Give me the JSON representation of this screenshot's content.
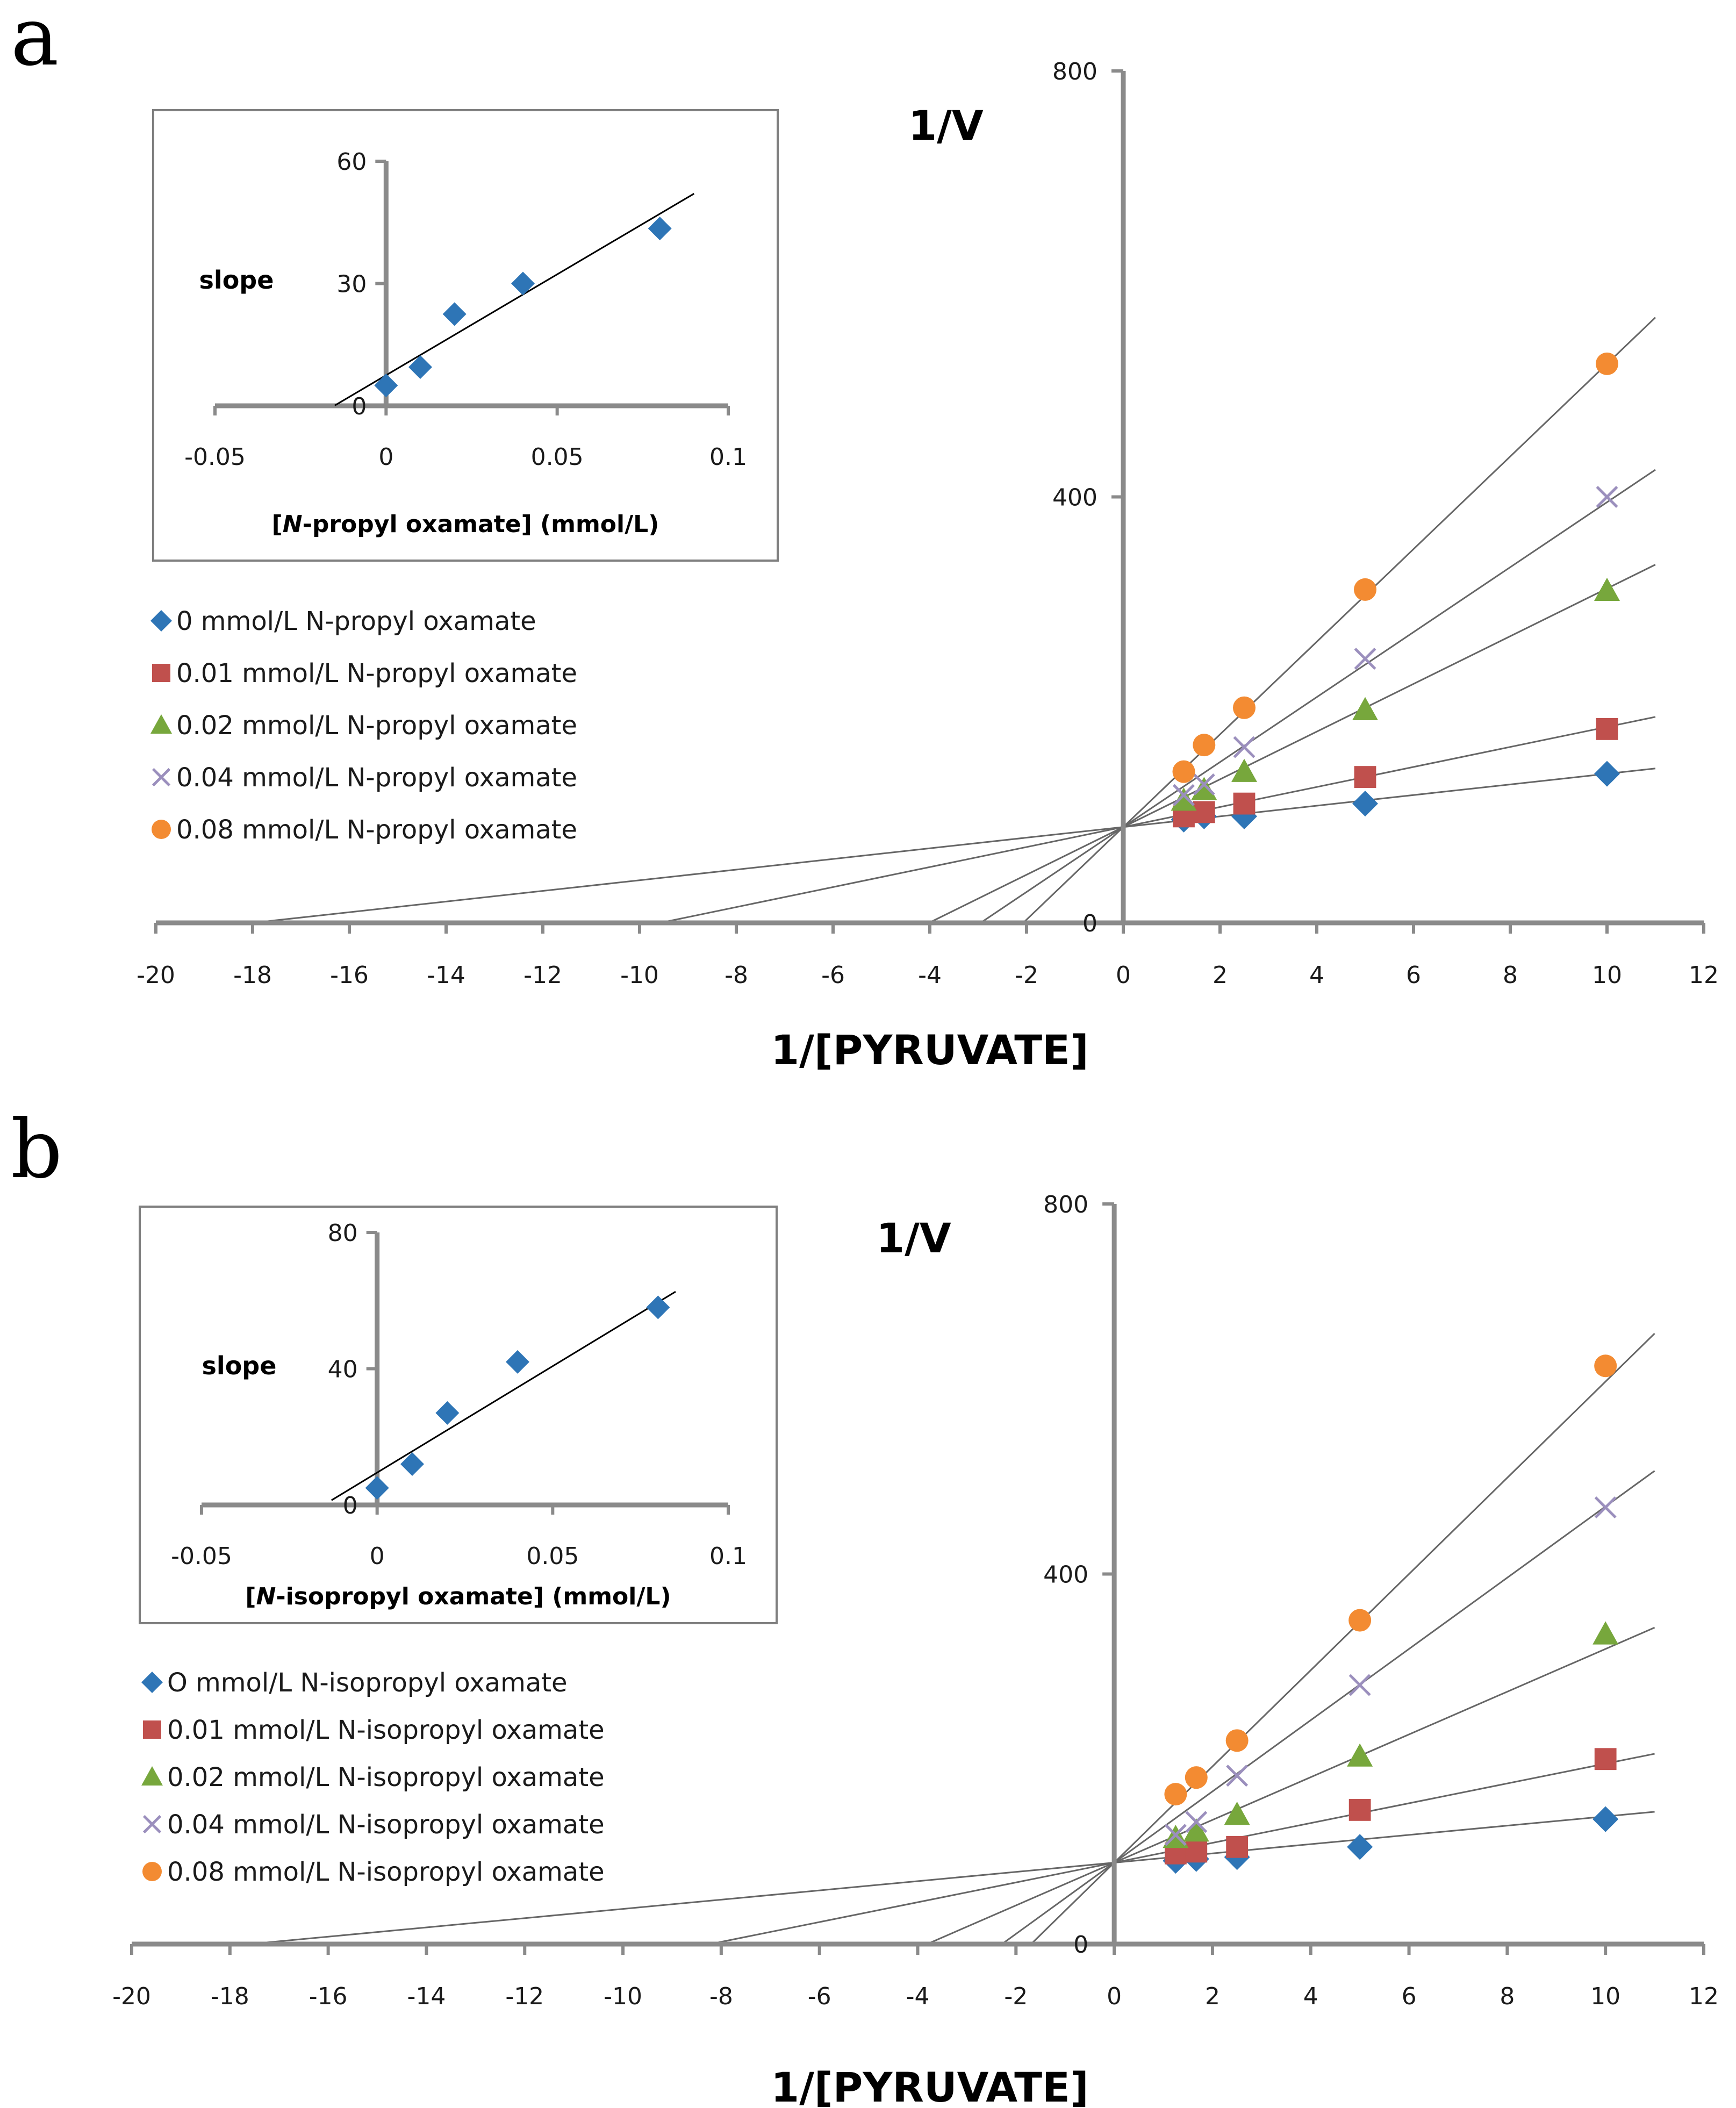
{
  "chart_data": [
    {
      "type": "scatter",
      "panel_label": "a",
      "title": "",
      "xlabel": "1/[PYRUVATE]",
      "ylabel": "1/V",
      "xlim": [
        -20,
        12
      ],
      "ylim": [
        0,
        800
      ],
      "x_ticks": [
        "-20",
        "-18",
        "-16",
        "-14",
        "-12",
        "-10",
        "-8",
        "-6",
        "-4",
        "-2",
        "0",
        "2",
        "4",
        "6",
        "8",
        "10",
        "12"
      ],
      "y_ticks": [
        "0",
        "400",
        "800"
      ],
      "grid": false,
      "legend_position": "left",
      "series": [
        {
          "name": "0 mmol/L N-propyl oxamate",
          "marker": "diamond",
          "color": "#2e75b6",
          "x": [
            1.25,
            1.67,
            2.5,
            5,
            10
          ],
          "y": [
            97,
            100,
            100,
            112,
            140
          ],
          "fit": {
            "slope": 5,
            "intercept": 90
          }
        },
        {
          "name": "0.01 mmol/L N-propyl oxamate",
          "marker": "square",
          "color": "#c0504d",
          "x": [
            1.25,
            1.67,
            2.5,
            5,
            10
          ],
          "y": [
            100,
            104,
            112,
            137,
            182
          ],
          "fit": {
            "slope": 9.4,
            "intercept": 90
          }
        },
        {
          "name": "0.02 mmol/L N-propyl oxamate",
          "marker": "triangle",
          "color": "#77a73c",
          "x": [
            1.25,
            1.67,
            2.5,
            5,
            10
          ],
          "y": [
            115,
            125,
            142,
            200,
            312
          ],
          "fit": {
            "slope": 22.4,
            "intercept": 90
          }
        },
        {
          "name": "0.04 mmol/L N-propyl oxamate",
          "marker": "x",
          "color": "#9b8fbd",
          "x": [
            1.25,
            1.67,
            2.5,
            5,
            10
          ],
          "y": [
            120,
            130,
            165,
            248,
            400
          ],
          "fit": {
            "slope": 30.5,
            "intercept": 90
          }
        },
        {
          "name": "0.08 mmol/L N-propyl oxamate",
          "marker": "circle",
          "color": "#f38b32",
          "x": [
            1.25,
            1.67,
            2.5,
            5,
            10
          ],
          "y": [
            142,
            167,
            202,
            313,
            525
          ],
          "fit": {
            "slope": 43.5,
            "intercept": 90
          }
        }
      ],
      "inset": {
        "ylabel": "slope",
        "xlabel_italic": "N",
        "xlabel_rest": "-propyl oxamate] (mmol/L)",
        "xlabel_open": "[",
        "xlim": [
          -0.05,
          0.1
        ],
        "ylim": [
          0,
          60
        ],
        "x_ticks": [
          "-0.05",
          "0",
          "0.05",
          "0.1"
        ],
        "y_ticks": [
          "0",
          "30",
          "60"
        ],
        "x": [
          0,
          0.01,
          0.02,
          0.04,
          0.08
        ],
        "y": [
          5,
          9.5,
          22.5,
          30,
          43.5
        ],
        "fit": {
          "slope": 495,
          "intercept": 7.5,
          "x_range": [
            -0.015,
            0.09
          ]
        },
        "color": "#2e75b6"
      }
    },
    {
      "type": "scatter",
      "panel_label": "b",
      "title": "",
      "xlabel": "1/[PYRUVATE]",
      "ylabel": "1/V",
      "xlim": [
        -20,
        12
      ],
      "ylim": [
        0,
        800
      ],
      "x_ticks": [
        "-20",
        "-18",
        "-16",
        "-14",
        "-12",
        "-10",
        "-8",
        "-6",
        "-4",
        "-2",
        "0",
        "2",
        "4",
        "6",
        "8",
        "10",
        "12"
      ],
      "y_ticks": [
        "0",
        "400",
        "800"
      ],
      "grid": false,
      "legend_position": "left",
      "series": [
        {
          "name": "O mmol/L N-isopropyl oxamate",
          "marker": "diamond",
          "color": "#2e75b6",
          "x": [
            1.25,
            1.67,
            2.5,
            5,
            10
          ],
          "y": [
            90,
            92,
            94,
            105,
            135
          ],
          "fit": {
            "slope": 5,
            "intercept": 88
          }
        },
        {
          "name": "0.01 mmol/L N-isopropyl oxamate",
          "marker": "square",
          "color": "#c0504d",
          "x": [
            1.25,
            1.67,
            2.5,
            5,
            10
          ],
          "y": [
            98,
            100,
            105,
            145,
            200
          ],
          "fit": {
            "slope": 10.7,
            "intercept": 88
          }
        },
        {
          "name": "0.02 mmol/L N-isopropyl oxamate",
          "marker": "triangle",
          "color": "#77a73c",
          "x": [
            1.25,
            1.67,
            2.5,
            5,
            10
          ],
          "y": [
            115,
            122,
            140,
            203,
            335
          ],
          "fit": {
            "slope": 23.1,
            "intercept": 88
          }
        },
        {
          "name": "0.04 mmol/L N-isopropyl oxamate",
          "marker": "x",
          "color": "#9b8fbd",
          "x": [
            1.25,
            1.67,
            2.5,
            5,
            10
          ],
          "y": [
            118,
            132,
            182,
            280,
            472
          ],
          "fit": {
            "slope": 38.5,
            "intercept": 88
          }
        },
        {
          "name": "0.08 mmol/L N-isopropyl oxamate",
          "marker": "circle",
          "color": "#f38b32",
          "x": [
            1.25,
            1.67,
            2.5,
            5,
            10
          ],
          "y": [
            162,
            180,
            220,
            350,
            625
          ],
          "fit": {
            "slope": 52,
            "intercept": 88
          }
        }
      ],
      "inset": {
        "ylabel": "slope",
        "xlabel_italic": "N",
        "xlabel_rest": "-isopropyl oxamate] (mmol/L)",
        "xlabel_open": "[",
        "xlim": [
          -0.05,
          0.1
        ],
        "ylim": [
          0,
          80
        ],
        "x_ticks": [
          "-0.05",
          "0",
          "0.05",
          "0.1"
        ],
        "y_ticks": [
          "0",
          "40",
          "80"
        ],
        "x": [
          0,
          0.01,
          0.02,
          0.04,
          0.08
        ],
        "y": [
          5,
          12,
          27,
          42,
          58
        ],
        "fit": {
          "slope": 625,
          "intercept": 9.5,
          "x_range": [
            -0.013,
            0.085
          ]
        },
        "color": "#2e75b6"
      }
    }
  ]
}
